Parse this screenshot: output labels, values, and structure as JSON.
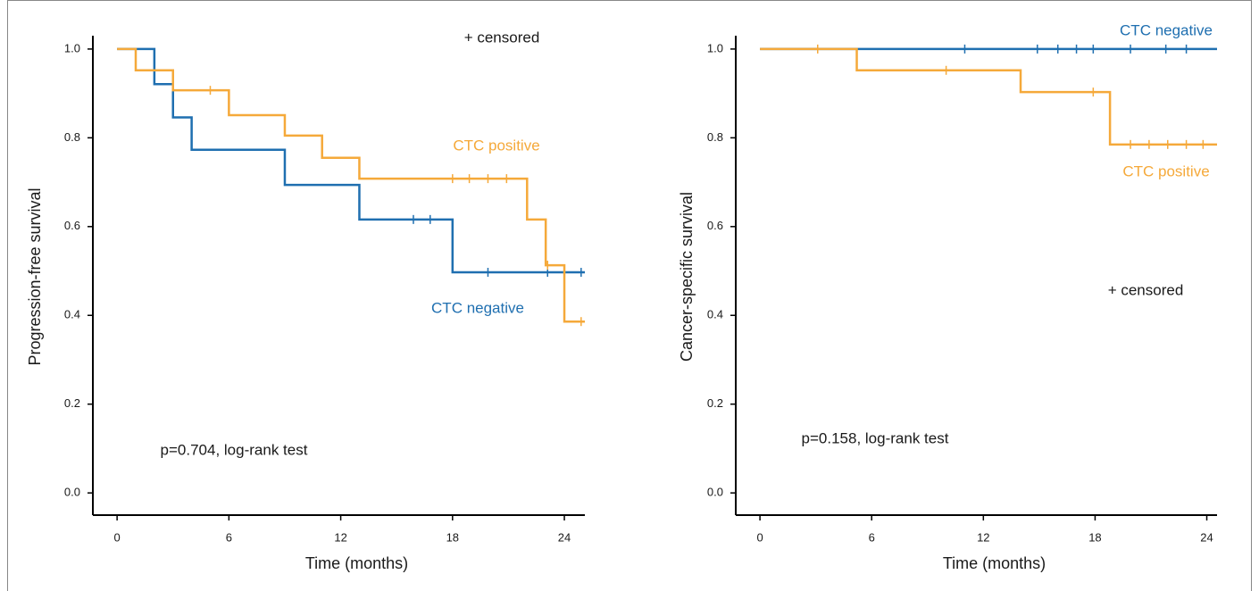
{
  "chart_data": [
    {
      "type": "line",
      "step": "post",
      "xlabel": "Time (months)",
      "ylabel": "Progression-free survival",
      "xlim": [
        -1.3,
        25.1
      ],
      "ylim": [
        -0.05,
        1.03
      ],
      "xticks": [
        0,
        6,
        12,
        18,
        24
      ],
      "yticks": [
        {
          "value": 0,
          "label": "0.0"
        },
        {
          "value": 0.2,
          "label": "0.2"
        },
        {
          "value": 0.4,
          "label": "0.4"
        },
        {
          "value": 0.6,
          "label": "0.6"
        },
        {
          "value": 0.8,
          "label": "0.8"
        },
        {
          "value": 1,
          "label": "1.0"
        }
      ],
      "series": [
        {
          "name": "CTC negative",
          "color": "#1f6fb0",
          "x": [
            0,
            2,
            3,
            4,
            9,
            13,
            18,
            25.1
          ],
          "values": [
            1.0,
            0.921,
            0.846,
            0.773,
            0.694,
            0.616,
            0.497,
            0.497
          ],
          "censor_x": [
            15.9,
            16.8,
            19.9,
            23.1,
            24.9
          ],
          "censor_values": [
            0.616,
            0.616,
            0.497,
            0.497,
            0.497
          ]
        },
        {
          "name": "CTC positive",
          "color": "#f5a93a",
          "x": [
            0,
            1,
            3,
            6,
            9,
            11,
            13,
            22,
            23,
            24,
            25.1
          ],
          "values": [
            1.0,
            0.952,
            0.907,
            0.851,
            0.805,
            0.755,
            0.708,
            0.616,
            0.513,
            0.386,
            0.386
          ],
          "censor_x": [
            5.0,
            18.0,
            18.9,
            19.9,
            20.9,
            23.1,
            24.9
          ],
          "censor_values": [
            0.907,
            0.708,
            0.708,
            0.708,
            0.708,
            0.513,
            0.386
          ]
        }
      ],
      "annotations": [
        "+ censored",
        "p=0.704, log-rank test"
      ]
    },
    {
      "type": "line",
      "step": "post",
      "xlabel": "Time (months)",
      "ylabel": "Cancer-specific survival",
      "xlim": [
        -1.3,
        24.55
      ],
      "ylim": [
        -0.05,
        1.03
      ],
      "xticks": [
        0,
        6,
        12,
        18,
        24
      ],
      "yticks": [
        {
          "value": 0,
          "label": "0.0"
        },
        {
          "value": 0.2,
          "label": "0.2"
        },
        {
          "value": 0.4,
          "label": "0.4"
        },
        {
          "value": 0.6,
          "label": "0.6"
        },
        {
          "value": 0.8,
          "label": "0.8"
        },
        {
          "value": 1,
          "label": "1.0"
        }
      ],
      "series": [
        {
          "name": "CTC negative",
          "color": "#1f6fb0",
          "x": [
            0,
            24.55
          ],
          "values": [
            1.0,
            1.0
          ],
          "censor_x": [
            11.0,
            14.9,
            16.0,
            17.0,
            17.9,
            19.9,
            21.8,
            22.9
          ],
          "censor_values": [
            1.0,
            1.0,
            1.0,
            1.0,
            1.0,
            1.0,
            1.0,
            1.0
          ]
        },
        {
          "name": "CTC positive",
          "color": "#f5a93a",
          "x": [
            0,
            5.2,
            14.0,
            18.8,
            24.55
          ],
          "values": [
            1.0,
            0.952,
            0.903,
            0.785,
            0.785
          ],
          "censor_x": [
            3.1,
            10.0,
            17.9,
            19.9,
            20.9,
            21.9,
            22.9,
            23.8
          ],
          "censor_values": [
            1.0,
            0.952,
            0.903,
            0.785,
            0.785,
            0.785,
            0.785,
            0.785
          ]
        }
      ],
      "annotations": [
        "+ censored",
        "p=0.158, log-rank test"
      ]
    }
  ]
}
